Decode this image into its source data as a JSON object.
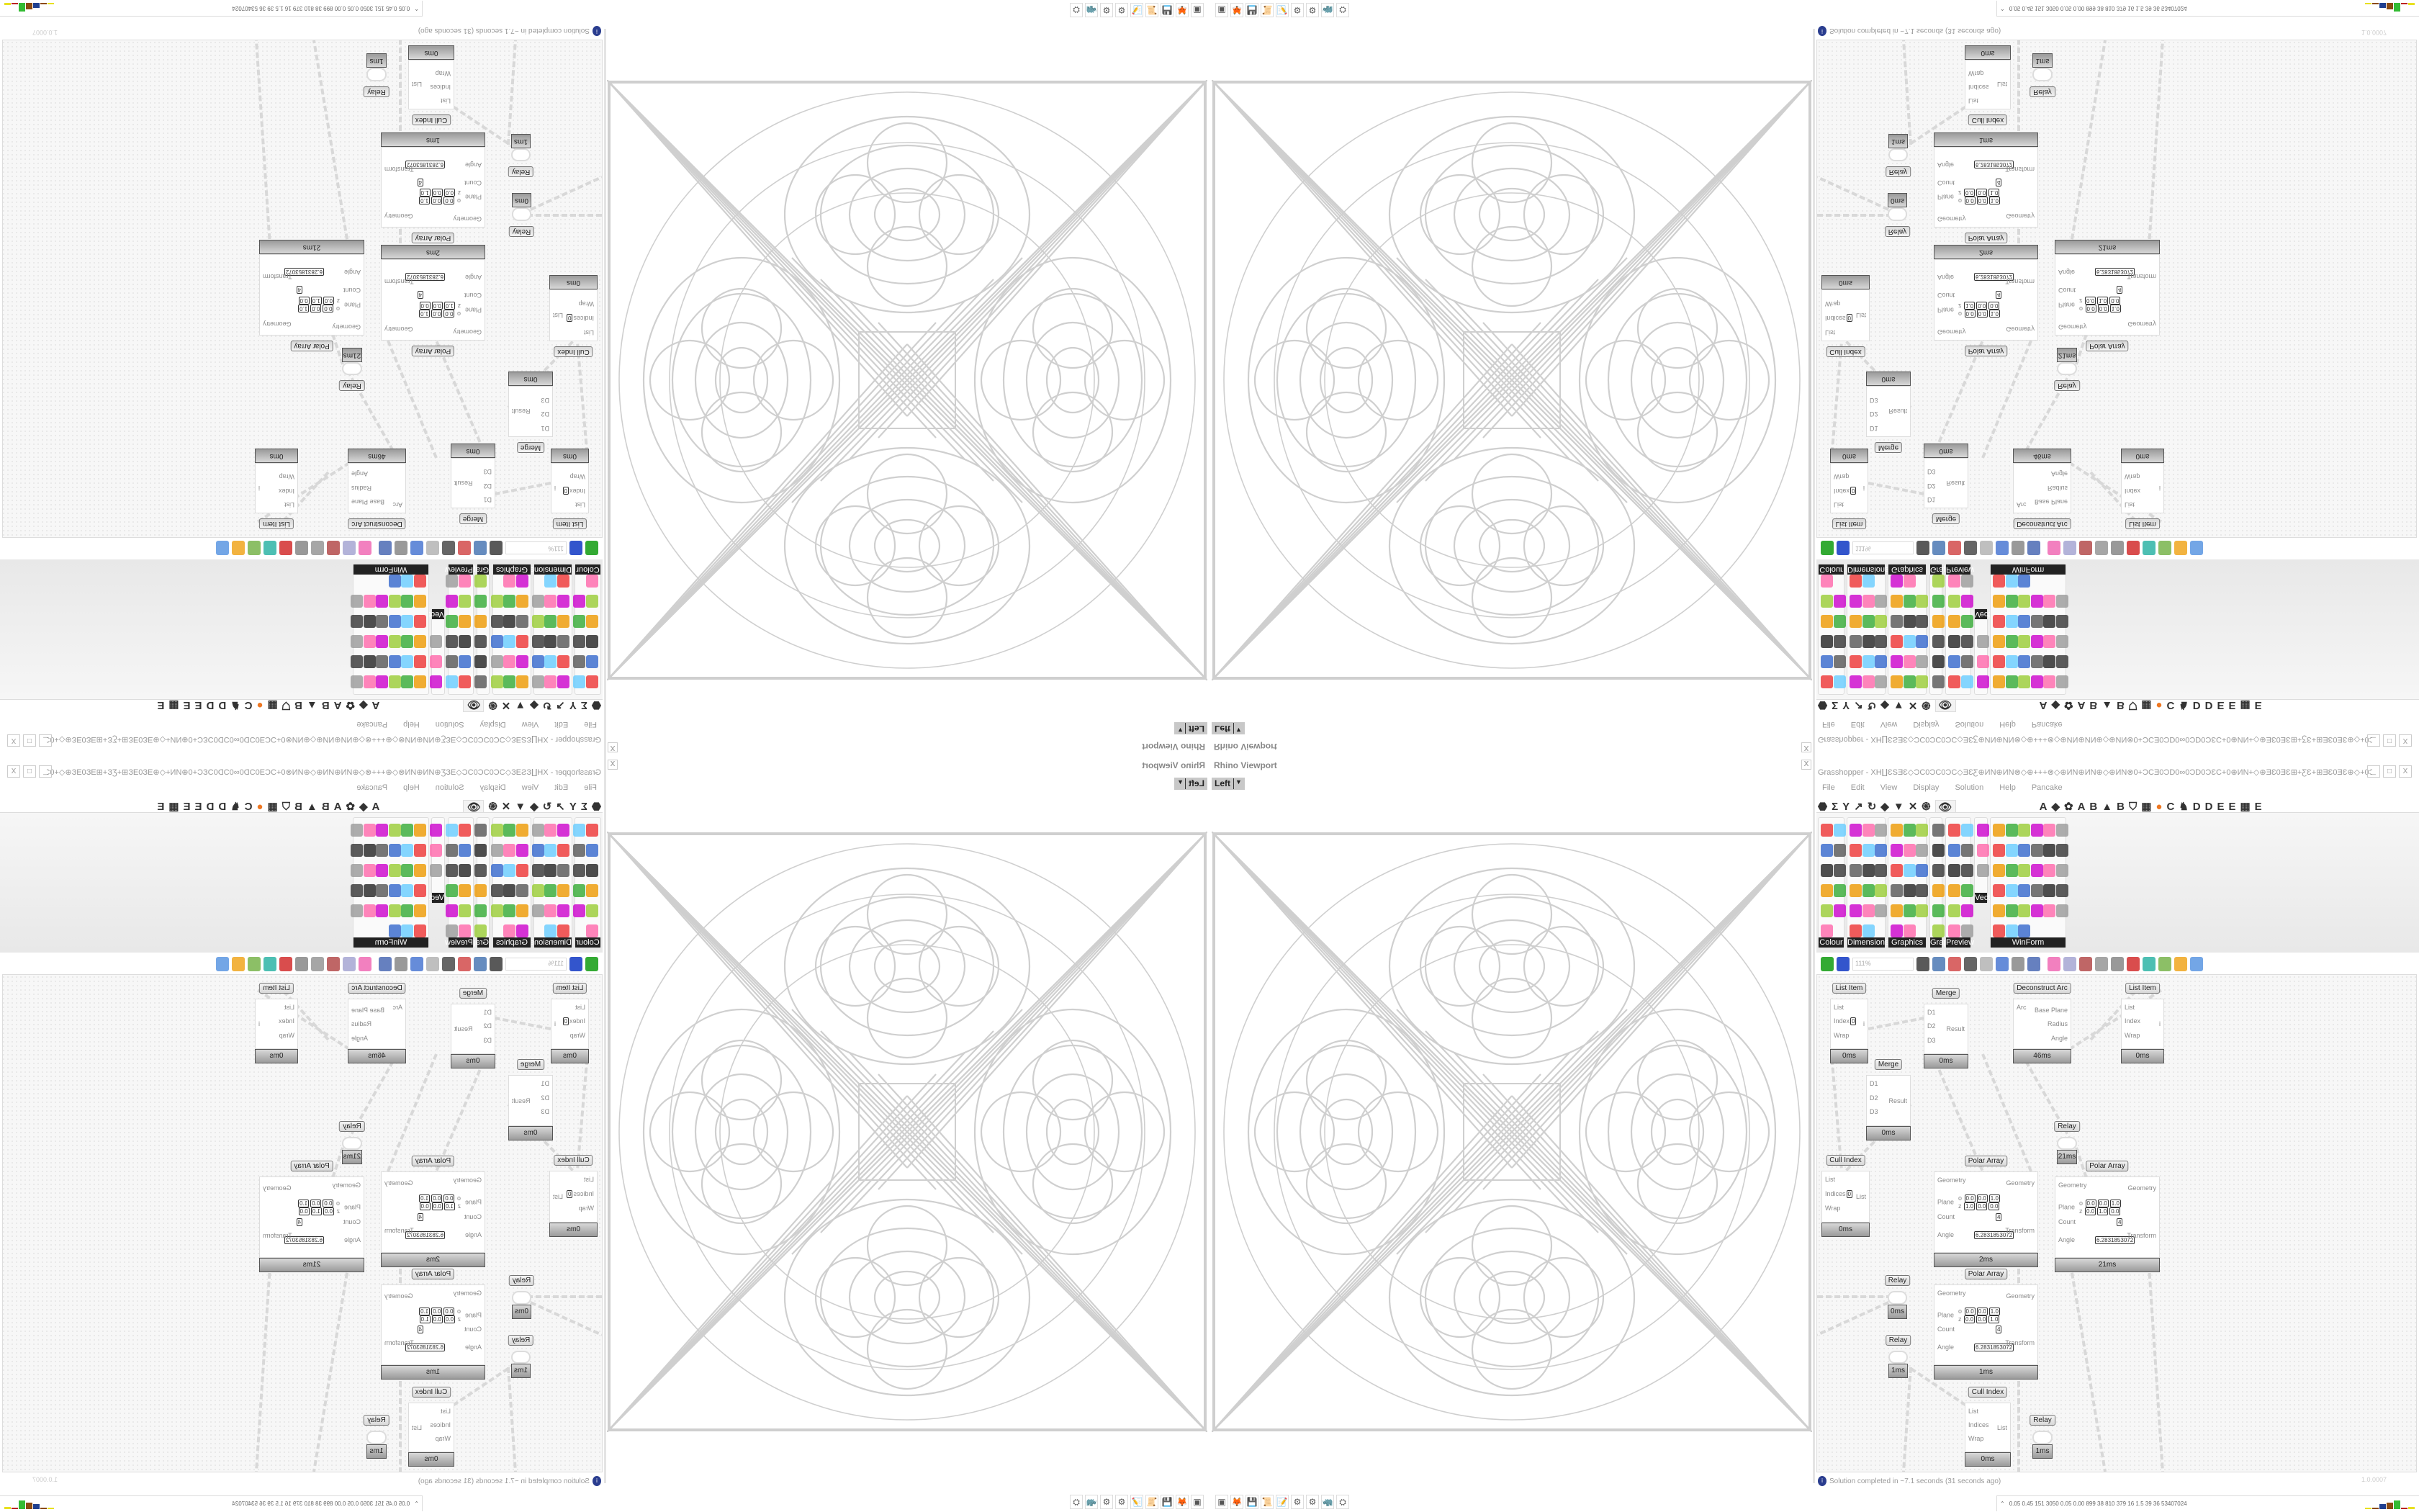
{
  "rhino": {
    "title": "Rhino Viewport",
    "close": "X",
    "view": "Left"
  },
  "taskbar": {
    "icons": [
      "phone-app-icon",
      "firefox-icon",
      "save-64-icon",
      "scroll-icon",
      "notepad-icon",
      "gear-bronze-icon",
      "gear-bronze-icon",
      "rhino-icon",
      "red-app-icon"
    ]
  },
  "grasshopper": {
    "title": "Grasshopper - XH∐ƐЅƎƐ◇ƆC0ƆC0ƆC◇ƎƐƸ⊕ИN⊕ИN⊗◇⊕+++⊗◇⊕ИN⊕ИN⊕◇⊕ИN⊗0+ƆCƎ0ƆD0∞0ƆD0ƆƐC+0⊕ИN+◇⊕ƎƐ0ƎƐ⊞+ƸƐ+⊞ƎƐ0ƎƐ⊕◇+0ƆDƎƐ⊕+ƆC",
    "window_buttons": [
      "_",
      "□",
      "X"
    ],
    "menu": [
      "File",
      "Edit",
      "View",
      "Display",
      "Solution",
      "Help",
      "Pancake"
    ],
    "tabs": [
      "⬣",
      "Σ",
      "Y",
      "↗",
      "↻",
      "◆",
      "▼",
      "✕",
      "֍",
      "👁",
      "A",
      "◆",
      "✿",
      "A",
      "B",
      "▲",
      "B",
      "⛉",
      "▦",
      "●",
      "C",
      "♞",
      "D",
      "D",
      "E",
      "E",
      "▦",
      "E"
    ],
    "active_tab": "👁",
    "accent": "#ee7722",
    "ribbon_panels": [
      {
        "label": "Colour",
        "icons": 11
      },
      {
        "label": "Dimensions",
        "icons": 17
      },
      {
        "label": "Graphics",
        "icons": 17
      },
      {
        "label": "Grap..",
        "icons": 6
      },
      {
        "label": "Preview",
        "icons": 12
      },
      {
        "label": "Vect..",
        "icons": 3
      },
      {
        "label": "WinForm",
        "icons": 33
      }
    ],
    "zoom": "111%",
    "components": [
      {
        "title": "List Item",
        "inputs": [
          "List",
          "Index",
          "Wrap"
        ],
        "outputs": [
          "i"
        ],
        "values": {
          "Index": "0"
        },
        "timer": "0ms"
      },
      {
        "title": "Merge",
        "inputs": [
          "D1",
          "D2",
          "D3"
        ],
        "outputs": [
          "Result"
        ],
        "timer": "0ms"
      },
      {
        "title": "Deconstruct Arc",
        "inputs": [
          "Arc"
        ],
        "outputs": [
          "Base Plane",
          "Radius",
          "Angle"
        ],
        "timer": "46ms"
      },
      {
        "title": "List Item",
        "inputs": [
          "List",
          "Index",
          "Wrap"
        ],
        "outputs": [
          "i"
        ],
        "timer": "0ms"
      },
      {
        "title": "Merge",
        "inputs": [
          "D1",
          "D2",
          "D3"
        ],
        "outputs": [
          "Result"
        ],
        "timer": "0ms"
      },
      {
        "title": "Relay",
        "inputs": [],
        "outputs": [],
        "timer": "21ms"
      },
      {
        "title": "Cull Index",
        "inputs": [
          "List",
          "Indices",
          "Wrap"
        ],
        "outputs": [
          "List"
        ],
        "values": {
          "Indices": "0"
        },
        "timer": "0ms"
      },
      {
        "title": "Polar Array",
        "inputs": [
          "Geometry",
          "Plane",
          "Count",
          "Angle"
        ],
        "outputs": [
          "Geometry",
          "Transform"
        ],
        "plane": {
          "o": [
            "0.0",
            "0.0",
            "1.0"
          ],
          "z": [
            "1.0",
            "0.0",
            "0.0"
          ]
        },
        "values": {
          "Count": "4",
          "Angle": "6.2831853072"
        },
        "timer": "2ms"
      },
      {
        "title": "Polar Array",
        "inputs": [
          "Geometry",
          "Plane",
          "Count",
          "Angle"
        ],
        "outputs": [
          "Geometry",
          "Transform"
        ],
        "plane": {
          "o": [
            "0.0",
            "0.0",
            "1.0"
          ],
          "z": [
            "0.0",
            "1.0",
            "0.0"
          ]
        },
        "values": {
          "Count": "4",
          "Angle": "6.2831853072"
        },
        "timer": "21ms"
      },
      {
        "title": "Polar Array",
        "inputs": [
          "Geometry",
          "Plane",
          "Count",
          "Angle"
        ],
        "outputs": [
          "Geometry",
          "Transform"
        ],
        "plane": {
          "o": [
            "0.0",
            "0.0",
            "1.0"
          ],
          "z": [
            "0.0",
            "0.0",
            "1.0"
          ]
        },
        "values": {
          "Count": "4",
          "Angle": "6.2831853072"
        },
        "timer": "1ms"
      },
      {
        "title": "Relay",
        "inputs": [],
        "outputs": [],
        "timer": "0ms"
      },
      {
        "title": "Relay",
        "inputs": [],
        "outputs": [],
        "timer": "1ms"
      },
      {
        "title": "Cull Index",
        "inputs": [
          "List",
          "Indices",
          "Wrap"
        ],
        "outputs": [
          "List"
        ],
        "timer": "0ms"
      },
      {
        "title": "Relay",
        "inputs": [],
        "outputs": [],
        "timer": "1ms"
      }
    ],
    "status": "Solution completed in ~7.1 seconds (31 seconds ago)",
    "version": "1.0.0007"
  },
  "tray": {
    "numbers": "0.05 0.45 151 3050 0.05 0.00 899 38 810 379 16 1.5 39 36 53407024",
    "bar_colors": [
      "#e8e020",
      "#8b4a10",
      "#1f3f8f",
      "#8b4a10",
      "#33bb33",
      "#bb2222"
    ]
  }
}
